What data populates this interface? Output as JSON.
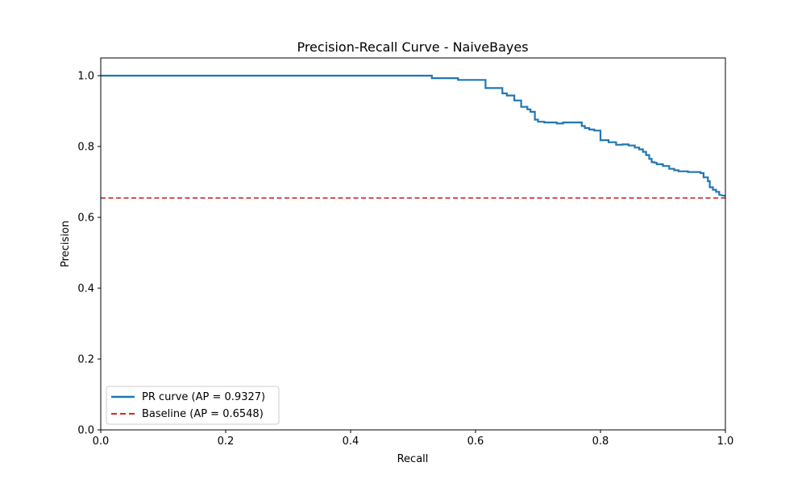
{
  "chart_data": {
    "type": "line",
    "title": "Precision-Recall Curve - NaiveBayes",
    "xlabel": "Recall",
    "ylabel": "Precision",
    "xlim": [
      0.0,
      1.0
    ],
    "ylim": [
      0.0,
      1.05
    ],
    "xticks": [
      "0.0",
      "0.2",
      "0.4",
      "0.6",
      "0.8",
      "1.0"
    ],
    "yticks": [
      "0.0",
      "0.2",
      "0.4",
      "0.6",
      "0.8",
      "1.0"
    ],
    "grid": false,
    "legend_position": "lower-left",
    "series": [
      {
        "name": "PR curve (AP = 0.9327)",
        "color": "#1f77b4",
        "style": "solid",
        "x": [
          0.0,
          0.53,
          0.53,
          0.572,
          0.572,
          0.616,
          0.616,
          0.643,
          0.643,
          0.65,
          0.65,
          0.662,
          0.662,
          0.673,
          0.673,
          0.683,
          0.683,
          0.688,
          0.688,
          0.695,
          0.695,
          0.7,
          0.7,
          0.71,
          0.71,
          0.73,
          0.73,
          0.74,
          0.74,
          0.77,
          0.77,
          0.775,
          0.775,
          0.782,
          0.782,
          0.79,
          0.79,
          0.8,
          0.8,
          0.813,
          0.813,
          0.825,
          0.825,
          0.835,
          0.835,
          0.845,
          0.845,
          0.855,
          0.855,
          0.862,
          0.862,
          0.868,
          0.868,
          0.873,
          0.873,
          0.878,
          0.878,
          0.882,
          0.882,
          0.886,
          0.886,
          0.89,
          0.89,
          0.9,
          0.9,
          0.91,
          0.91,
          0.918,
          0.918,
          0.925,
          0.925,
          0.94,
          0.94,
          0.96,
          0.96,
          0.965,
          0.965,
          0.972,
          0.972,
          0.975,
          0.975,
          0.98,
          0.98,
          0.985,
          0.985,
          0.99,
          0.99,
          1.0
        ],
        "y": [
          1.0,
          1.0,
          0.993,
          0.993,
          0.988,
          0.988,
          0.965,
          0.965,
          0.95,
          0.95,
          0.944,
          0.944,
          0.93,
          0.93,
          0.912,
          0.912,
          0.905,
          0.905,
          0.898,
          0.898,
          0.876,
          0.876,
          0.87,
          0.87,
          0.868,
          0.868,
          0.865,
          0.865,
          0.868,
          0.868,
          0.858,
          0.858,
          0.852,
          0.852,
          0.848,
          0.848,
          0.845,
          0.845,
          0.818,
          0.818,
          0.812,
          0.812,
          0.805,
          0.805,
          0.806,
          0.806,
          0.803,
          0.803,
          0.797,
          0.797,
          0.792,
          0.792,
          0.785,
          0.785,
          0.776,
          0.776,
          0.765,
          0.765,
          0.756,
          0.756,
          0.754,
          0.754,
          0.75,
          0.75,
          0.745,
          0.745,
          0.737,
          0.737,
          0.733,
          0.733,
          0.73,
          0.73,
          0.728,
          0.728,
          0.725,
          0.725,
          0.713,
          0.713,
          0.702,
          0.702,
          0.685,
          0.685,
          0.678,
          0.678,
          0.672,
          0.672,
          0.664,
          0.66
        ]
      },
      {
        "name": "Baseline (AP = 0.6548)",
        "color": "#d62728",
        "style": "dashed",
        "x": [
          0.0,
          1.0
        ],
        "y": [
          0.6548,
          0.6548
        ]
      }
    ]
  }
}
